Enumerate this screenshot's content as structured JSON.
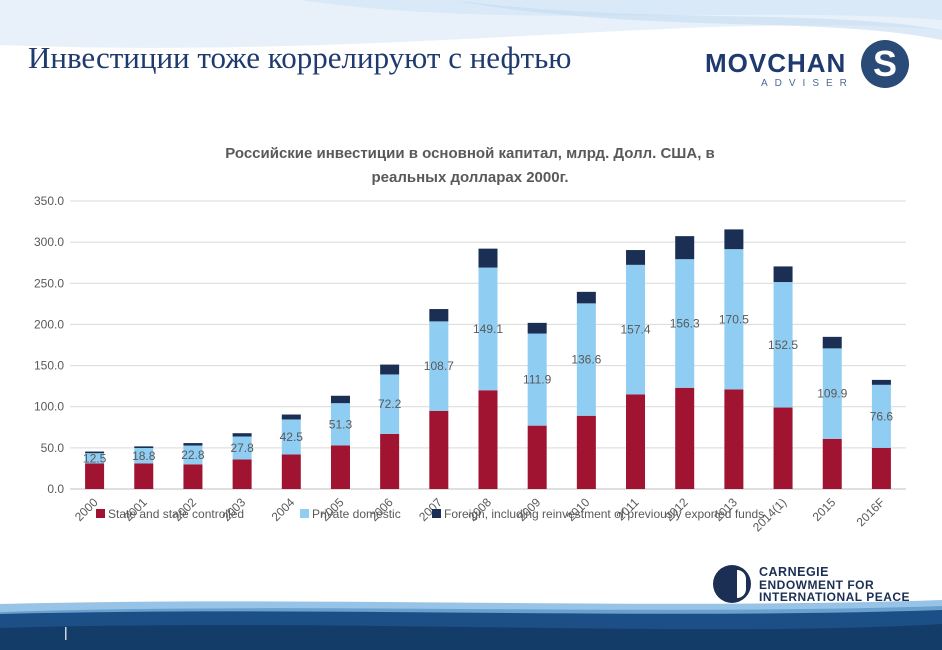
{
  "slide": {
    "title": "Инвестиции тоже коррелируют с нефтью",
    "logo_text": "MOVCHAN",
    "logo_sub": "ADVISER",
    "logo_mark": "S",
    "footer_org_lines": [
      "CARNEGIE",
      "ENDOWMENT FOR",
      "INTERNATIONAL PEACE"
    ],
    "page_number": "|"
  },
  "chart_data": {
    "type": "bar",
    "stacked": true,
    "title_lines": [
      "Российские инвестиции в основной капитал, млрд. Долл. США, в",
      "реальных долларах 2000г."
    ],
    "categories": [
      "2000",
      "2001",
      "2002",
      "2003",
      "2004",
      "2005",
      "2006",
      "2007",
      "2008",
      "2009",
      "2010",
      "2011",
      "2012",
      "2013",
      "2014(1)",
      "2015",
      "2016F"
    ],
    "series": [
      {
        "name": "State and state controlled",
        "color": "#a01331",
        "values": [
          31,
          31,
          30,
          36,
          42,
          53,
          67,
          95,
          120,
          77,
          89,
          115,
          123,
          121,
          99,
          61,
          50
        ]
      },
      {
        "name": "Private domestic",
        "color": "#8fcdf2",
        "values": [
          12.5,
          18.8,
          22.8,
          27.8,
          42.5,
          51.3,
          72.2,
          108.7,
          149.1,
          111.9,
          136.6,
          157.4,
          156.3,
          170.5,
          152.5,
          109.9,
          76.6
        ]
      },
      {
        "name": "Foreign, including reinvestment of previously exported funds",
        "color": "#1b2f55",
        "values": [
          2,
          2,
          3,
          4,
          6,
          9,
          12,
          15,
          23,
          13,
          14,
          18,
          28,
          24,
          19,
          14,
          6
        ]
      }
    ],
    "data_labels": [
      "12.5",
      "18.8",
      "22.8",
      "27.8",
      "42.5",
      "51.3",
      "72.2",
      "108.7",
      "149.1",
      "111.9",
      "136.6",
      "157.4",
      "156.3",
      "170.5",
      "152.5",
      "109.9",
      "76.6"
    ],
    "y_ticks": [
      "0.0",
      "50.0",
      "100.0",
      "150.0",
      "200.0",
      "250.0",
      "300.0",
      "350.0"
    ],
    "ylim": [
      0,
      350
    ],
    "grid": true,
    "legend_position": "bottom"
  }
}
